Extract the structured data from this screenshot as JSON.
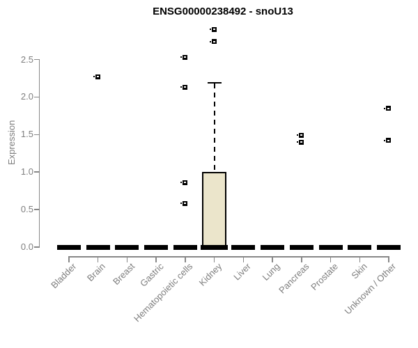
{
  "title": "ENSG00000238492 - snoU13",
  "chart_data": {
    "type": "boxplot",
    "title": "ENSG00000238492 - snoU13",
    "xlabel": "",
    "ylabel": "Expression",
    "ylim": [
      0,
      2.95
    ],
    "ytick_labels": [
      "0.0",
      "0.5",
      "1.0",
      "1.5",
      "2.0",
      "2.5"
    ],
    "grid": false,
    "legend": "none",
    "categories": [
      "Bladder",
      "Brain",
      "Breast",
      "Gastric",
      "Hematopoietic cells",
      "Kidney",
      "Liver",
      "Lung",
      "Pancreas",
      "Prostate",
      "Skin",
      "Unknown / Other"
    ],
    "boxes": [
      {
        "category": "Bladder",
        "q1": 0,
        "median": 0,
        "q3": 0,
        "whisker_low": 0,
        "whisker_high": 0,
        "outliers": []
      },
      {
        "category": "Brain",
        "q1": 0,
        "median": 0,
        "q3": 0,
        "whisker_low": 0,
        "whisker_high": 0,
        "outliers": [
          2.27
        ]
      },
      {
        "category": "Breast",
        "q1": 0,
        "median": 0,
        "q3": 0,
        "whisker_low": 0,
        "whisker_high": 0,
        "outliers": []
      },
      {
        "category": "Gastric",
        "q1": 0,
        "median": 0,
        "q3": 0,
        "whisker_low": 0,
        "whisker_high": 0,
        "outliers": []
      },
      {
        "category": "Hematopoietic cells",
        "q1": 0,
        "median": 0,
        "q3": 0,
        "whisker_low": 0,
        "whisker_high": 0,
        "outliers": [
          2.53,
          2.13,
          0.86,
          0.58
        ]
      },
      {
        "category": "Kidney",
        "q1": 0,
        "median": 0,
        "q3": 1.0,
        "whisker_low": 0,
        "whisker_high": 2.19,
        "outliers": [
          2.9,
          2.74
        ]
      },
      {
        "category": "Liver",
        "q1": 0,
        "median": 0,
        "q3": 0,
        "whisker_low": 0,
        "whisker_high": 0,
        "outliers": []
      },
      {
        "category": "Lung",
        "q1": 0,
        "median": 0,
        "q3": 0,
        "whisker_low": 0,
        "whisker_high": 0,
        "outliers": []
      },
      {
        "category": "Pancreas",
        "q1": 0,
        "median": 0,
        "q3": 0,
        "whisker_low": 0,
        "whisker_high": 0,
        "outliers": [
          1.49,
          1.4
        ]
      },
      {
        "category": "Prostate",
        "q1": 0,
        "median": 0,
        "q3": 0,
        "whisker_low": 0,
        "whisker_high": 0,
        "outliers": []
      },
      {
        "category": "Skin",
        "q1": 0,
        "median": 0,
        "q3": 0,
        "whisker_low": 0,
        "whisker_high": 0,
        "outliers": []
      },
      {
        "category": "Unknown / Other",
        "q1": 0,
        "median": 0,
        "q3": 0,
        "whisker_low": 0,
        "whisker_high": 0,
        "outliers": [
          1.85,
          1.42
        ]
      }
    ],
    "colors": {
      "box_fill": "#EBE5CB",
      "box_border": "#000000",
      "axis": "#878787",
      "labels": "#7e7e7e",
      "title": "#000000"
    }
  }
}
